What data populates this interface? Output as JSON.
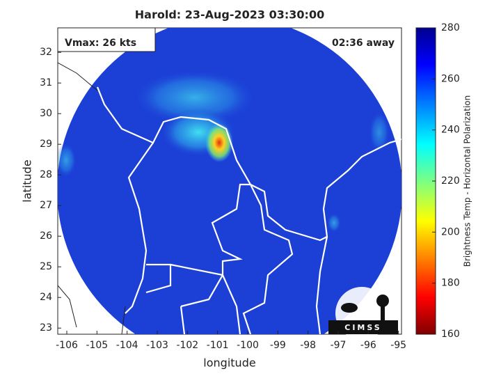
{
  "chart_data": {
    "type": "map",
    "title": "Harold: 23-Aug-2023 03:30:00",
    "annotations": [
      "Vmax: 26 kts",
      "02:36 away"
    ],
    "x_label": "longitude",
    "y_label": "latitude",
    "xlim": [
      -106.3,
      -94.9
    ],
    "xticks": [
      -106,
      -105,
      -104,
      -103,
      -102,
      -101,
      -100,
      -99,
      -98,
      -97,
      -96,
      -95
    ],
    "ylim": [
      22.8,
      32.8
    ],
    "yticks": [
      23,
      24,
      25,
      26,
      27,
      28,
      29,
      30,
      31,
      32
    ],
    "colorbar": {
      "label": "Brightness Temp - Horizontal Polarization",
      "lim": [
        160,
        280
      ],
      "ticks": [
        160,
        180,
        200,
        220,
        240,
        260,
        280
      ]
    },
    "logo": "CIMSS"
  }
}
